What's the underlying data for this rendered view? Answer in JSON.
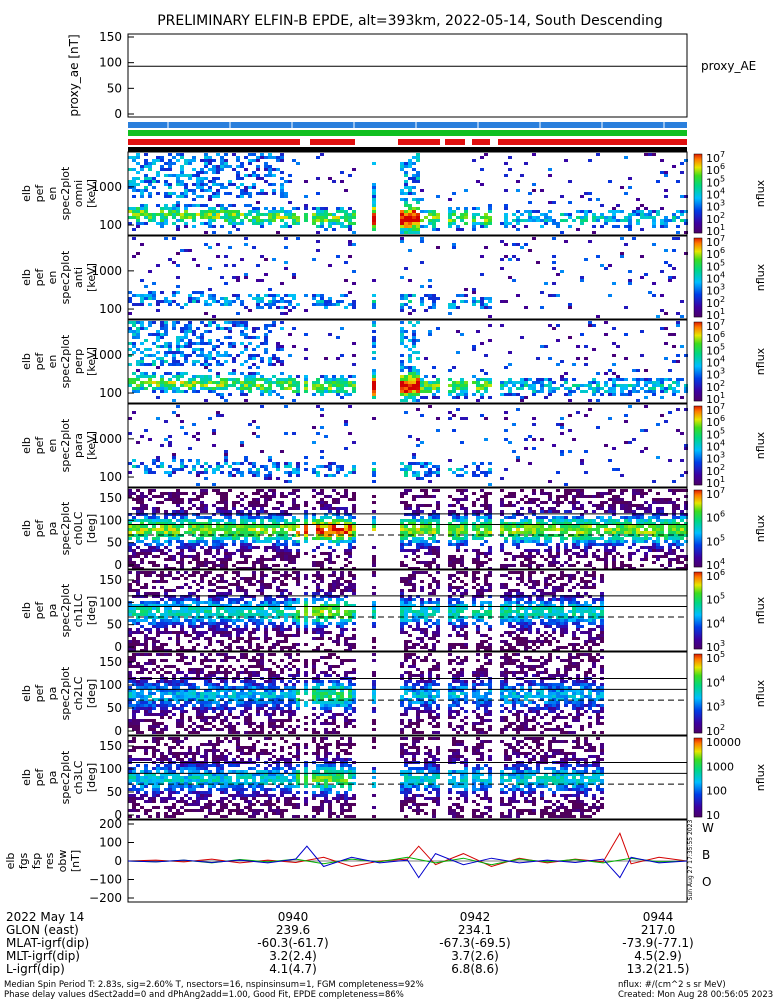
{
  "title": "PRELIMINARY ELFIN-B EPDE, alt=393km, 2022-05-14, South Descending",
  "chart_data": [
    {
      "type": "line",
      "panel": "proxy_ae",
      "ylabel": "proxy_ae [nT]",
      "ylim": [
        0,
        150
      ],
      "yticks": [
        "150",
        "100",
        "50",
        "0"
      ],
      "legend": "proxy_AE",
      "series": [
        {
          "name": "proxy_AE",
          "values": [
            93,
            93
          ]
        }
      ]
    },
    {
      "type": "heatmap",
      "panel": "elb pef en spec2plot omni",
      "ylabel": "elb pef en spec2plot omni [keV]",
      "yticks": [
        "1000",
        "100"
      ],
      "colorbar": {
        "label": "nflux",
        "ticks": [
          "10^7",
          "10^6",
          "10^5",
          "10^4",
          "10^3",
          "10^2",
          "10^1"
        ]
      }
    },
    {
      "type": "heatmap",
      "panel": "elb pef en spec2plot anti",
      "ylabel": "elb pef en spec2plot anti [keV]",
      "yticks": [
        "1000",
        "100"
      ],
      "colorbar": {
        "label": "nflux",
        "ticks": [
          "10^7",
          "10^6",
          "10^5",
          "10^4",
          "10^3",
          "10^2",
          "10^1"
        ]
      }
    },
    {
      "type": "heatmap",
      "panel": "elb pef en spec2plot perp",
      "ylabel": "elb pef en spec2plot perp [keV]",
      "yticks": [
        "1000",
        "100"
      ],
      "colorbar": {
        "label": "nflux",
        "ticks": [
          "10^7",
          "10^6",
          "10^5",
          "10^4",
          "10^3",
          "10^2",
          "10^1"
        ]
      }
    },
    {
      "type": "heatmap",
      "panel": "elb pef en spec2plot para",
      "ylabel": "elb pef en spec2plot para [keV]",
      "yticks": [
        "1000",
        "100"
      ],
      "colorbar": {
        "label": "nflux",
        "ticks": [
          "10^7",
          "10^6",
          "10^5",
          "10^4",
          "10^3",
          "10^2",
          "10^1"
        ]
      }
    },
    {
      "type": "heatmap",
      "panel": "elb pef pa spec2plot ch0LC",
      "ylabel": "elb pef pa spec2plot ch0LC [deg]",
      "yticks": [
        "150",
        "100",
        "50",
        "0"
      ],
      "colorbar": {
        "label": "nflux",
        "ticks": [
          "10^7",
          "10^6",
          "10^5",
          "10^4"
        ]
      }
    },
    {
      "type": "heatmap",
      "panel": "elb pef pa spec2plot ch1LC",
      "ylabel": "elb pef pa spec2plot ch1LC [deg]",
      "yticks": [
        "150",
        "100",
        "50",
        "0"
      ],
      "colorbar": {
        "label": "nflux",
        "ticks": [
          "10^6",
          "10^5",
          "10^4",
          "10^3"
        ]
      }
    },
    {
      "type": "heatmap",
      "panel": "elb pef pa spec2plot ch2LC",
      "ylabel": "elb pef pa spec2plot ch2LC [deg]",
      "yticks": [
        "150",
        "100",
        "50",
        "0"
      ],
      "colorbar": {
        "label": "nflux",
        "ticks": [
          "10^5",
          "10^4",
          "10^3",
          "10^2"
        ]
      }
    },
    {
      "type": "heatmap",
      "panel": "elb pef pa spec2plot ch3LC",
      "ylabel": "elb pef pa spec2plot ch3LC [deg]",
      "yticks": [
        "150",
        "100",
        "50",
        "0"
      ],
      "colorbar": {
        "label": "nflux",
        "ticks": [
          "10000",
          "1000",
          "100",
          "10"
        ]
      }
    },
    {
      "type": "line",
      "panel": "elb fgs fsp res obw",
      "ylabel": "elb fgs fsp res obw [nT]",
      "ylim": [
        -200,
        200
      ],
      "yticks": [
        "200",
        "100",
        "0",
        "−100",
        "−200"
      ],
      "legend_labels": [
        {
          "name": "W",
          "color": "#d40000"
        },
        {
          "name": "B",
          "color": "#00b000"
        },
        {
          "name": "O",
          "color": "#0000cc"
        }
      ],
      "stamp": "Sun Aug 27 17:35:55 2023",
      "series": [
        {
          "name": "W",
          "color": "#d40000",
          "x": [
            0,
            0.05,
            0.1,
            0.15,
            0.2,
            0.25,
            0.3,
            0.35,
            0.4,
            0.45,
            0.5,
            0.52,
            0.55,
            0.6,
            0.65,
            0.7,
            0.75,
            0.8,
            0.85,
            0.88,
            0.9,
            0.95,
            1
          ],
          "values": [
            0,
            5,
            -5,
            10,
            -10,
            5,
            -8,
            20,
            -30,
            0,
            10,
            80,
            -20,
            40,
            -30,
            15,
            -10,
            10,
            -5,
            150,
            -15,
            20,
            0
          ]
        },
        {
          "name": "B",
          "color": "#00b000",
          "x": [
            0,
            0.05,
            0.1,
            0.15,
            0.2,
            0.25,
            0.3,
            0.35,
            0.4,
            0.45,
            0.5,
            0.55,
            0.6,
            0.65,
            0.7,
            0.75,
            0.8,
            0.85,
            0.9,
            0.95,
            1
          ],
          "values": [
            0,
            -5,
            5,
            -10,
            8,
            -5,
            10,
            -15,
            10,
            -5,
            20,
            -10,
            15,
            -20,
            10,
            -5,
            8,
            -10,
            15,
            -5,
            0
          ]
        },
        {
          "name": "O",
          "color": "#0000cc",
          "x": [
            0,
            0.05,
            0.1,
            0.15,
            0.2,
            0.25,
            0.3,
            0.32,
            0.35,
            0.4,
            0.45,
            0.5,
            0.52,
            0.55,
            0.6,
            0.65,
            0.7,
            0.75,
            0.8,
            0.85,
            0.88,
            0.9,
            0.95,
            1
          ],
          "values": [
            0,
            -5,
            5,
            -8,
            5,
            -10,
            10,
            80,
            -30,
            20,
            -10,
            5,
            -90,
            40,
            -20,
            15,
            -10,
            5,
            -8,
            10,
            -90,
            20,
            -10,
            0
          ]
        }
      ]
    }
  ],
  "xaxis": {
    "row_labels": [
      "2022 May 14",
      "GLON (east)",
      "MLAT-igrf(dip)",
      "MLT-igrf(dip)",
      "L-igrf(dip)"
    ],
    "columns": [
      {
        "values": [
          "0940",
          "239.6",
          "-60.3(-61.7)",
          "3.2(2.4)",
          "4.1(4.7)"
        ]
      },
      {
        "values": [
          "0942",
          "234.1",
          "-67.3(-69.5)",
          "3.7(2.6)",
          "6.8(8.6)"
        ]
      },
      {
        "values": [
          "0944",
          "217.0",
          "-73.9(-77.1)",
          "4.5(2.9)",
          "13.2(21.5)"
        ]
      }
    ]
  },
  "footer": {
    "left1": "Median Spin Period T: 2.83s, sig=2.60% T, nsectors=16, nspinsinsum=1, FGM completeness=92%",
    "left2": "Phase delay values dSect2add=0 and dPhAng2add=1.00, Good Fit, EPDE completeness=86%",
    "right1": "nflux: #/(cm^2 s sr MeV)",
    "right2": "Created: Mon Aug 28 00:56:05 2023"
  },
  "status_bar_colors": [
    "#2a7fdc",
    "#10c020",
    "#e01010",
    "#000000"
  ]
}
